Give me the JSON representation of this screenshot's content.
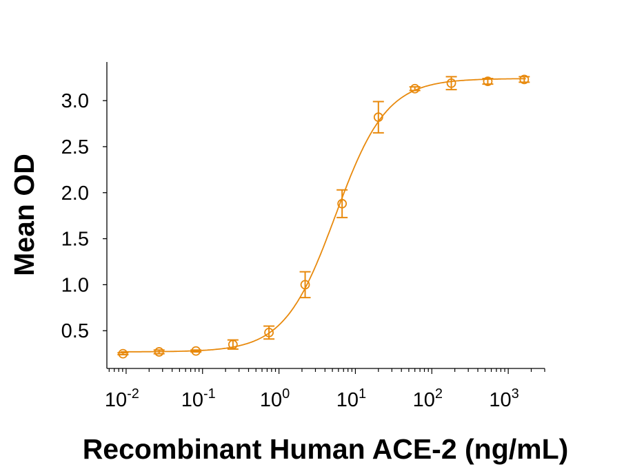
{
  "chart_data": {
    "type": "scatter",
    "xlabel": "Recombinant Human ACE-2 (ng/mL)",
    "ylabel": "Mean OD",
    "x_scale": "log",
    "xlim": [
      0.0056,
      3000
    ],
    "ylim": [
      0.09,
      3.42
    ],
    "grid": false,
    "color": "#E8890C",
    "x_ticks": [
      {
        "base": "10",
        "exp": "-2",
        "value": 0.01
      },
      {
        "base": "10",
        "exp": "-1",
        "value": 0.1
      },
      {
        "base": "10",
        "exp": "0",
        "value": 1
      },
      {
        "base": "10",
        "exp": "1",
        "value": 10
      },
      {
        "base": "10",
        "exp": "2",
        "value": 100
      },
      {
        "base": "10",
        "exp": "3",
        "value": 1000
      }
    ],
    "y_ticks": [
      "0.5",
      "1.0",
      "1.5",
      "2.0",
      "2.5",
      "3.0"
    ],
    "points": [
      {
        "x": 0.0091,
        "y": 0.25,
        "err": 0.01
      },
      {
        "x": 0.027,
        "y": 0.27,
        "err": 0.02
      },
      {
        "x": 0.082,
        "y": 0.28,
        "err": 0.01
      },
      {
        "x": 0.25,
        "y": 0.35,
        "err": 0.05
      },
      {
        "x": 0.74,
        "y": 0.48,
        "err": 0.07
      },
      {
        "x": 2.2,
        "y": 1.0,
        "err": 0.14
      },
      {
        "x": 6.7,
        "y": 1.88,
        "err": 0.15
      },
      {
        "x": 20,
        "y": 2.82,
        "err": 0.17
      },
      {
        "x": 60,
        "y": 3.13,
        "err": 0.02
      },
      {
        "x": 180,
        "y": 3.19,
        "err": 0.07
      },
      {
        "x": 540,
        "y": 3.21,
        "err": 0.03
      },
      {
        "x": 1620,
        "y": 3.23,
        "err": 0.03
      }
    ],
    "fit_curve": {
      "model": "4PL",
      "bottom": 0.27,
      "top": 3.24,
      "ec50": 5.5,
      "hill": 1.3
    }
  }
}
